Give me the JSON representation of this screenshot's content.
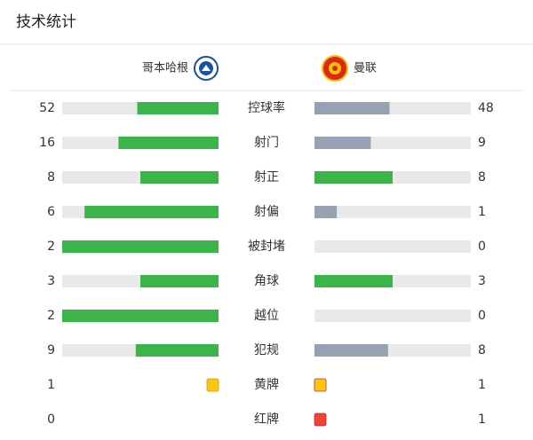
{
  "header": {
    "title": "技术统计"
  },
  "teams": {
    "home": "哥本哈根",
    "away": "曼联"
  },
  "colors": {
    "leading": "#3bb54a",
    "trailing": "#98a1b3",
    "track": "#e9e9e9"
  },
  "stats": [
    {
      "label": "控球率",
      "home": 52,
      "away": 48
    },
    {
      "label": "射门",
      "home": 16,
      "away": 9
    },
    {
      "label": "射正",
      "home": 8,
      "away": 8
    },
    {
      "label": "射偏",
      "home": 6,
      "away": 1
    },
    {
      "label": "被封堵",
      "home": 2,
      "away": 0
    },
    {
      "label": "角球",
      "home": 3,
      "away": 3
    },
    {
      "label": "越位",
      "home": 2,
      "away": 0
    },
    {
      "label": "犯规",
      "home": 9,
      "away": 8
    },
    {
      "label": "黄牌",
      "home": 1,
      "away": 1,
      "card_color": "#f9c80e"
    },
    {
      "label": "红牌",
      "home": 0,
      "away": 1,
      "card_color": "#ee4433"
    }
  ]
}
